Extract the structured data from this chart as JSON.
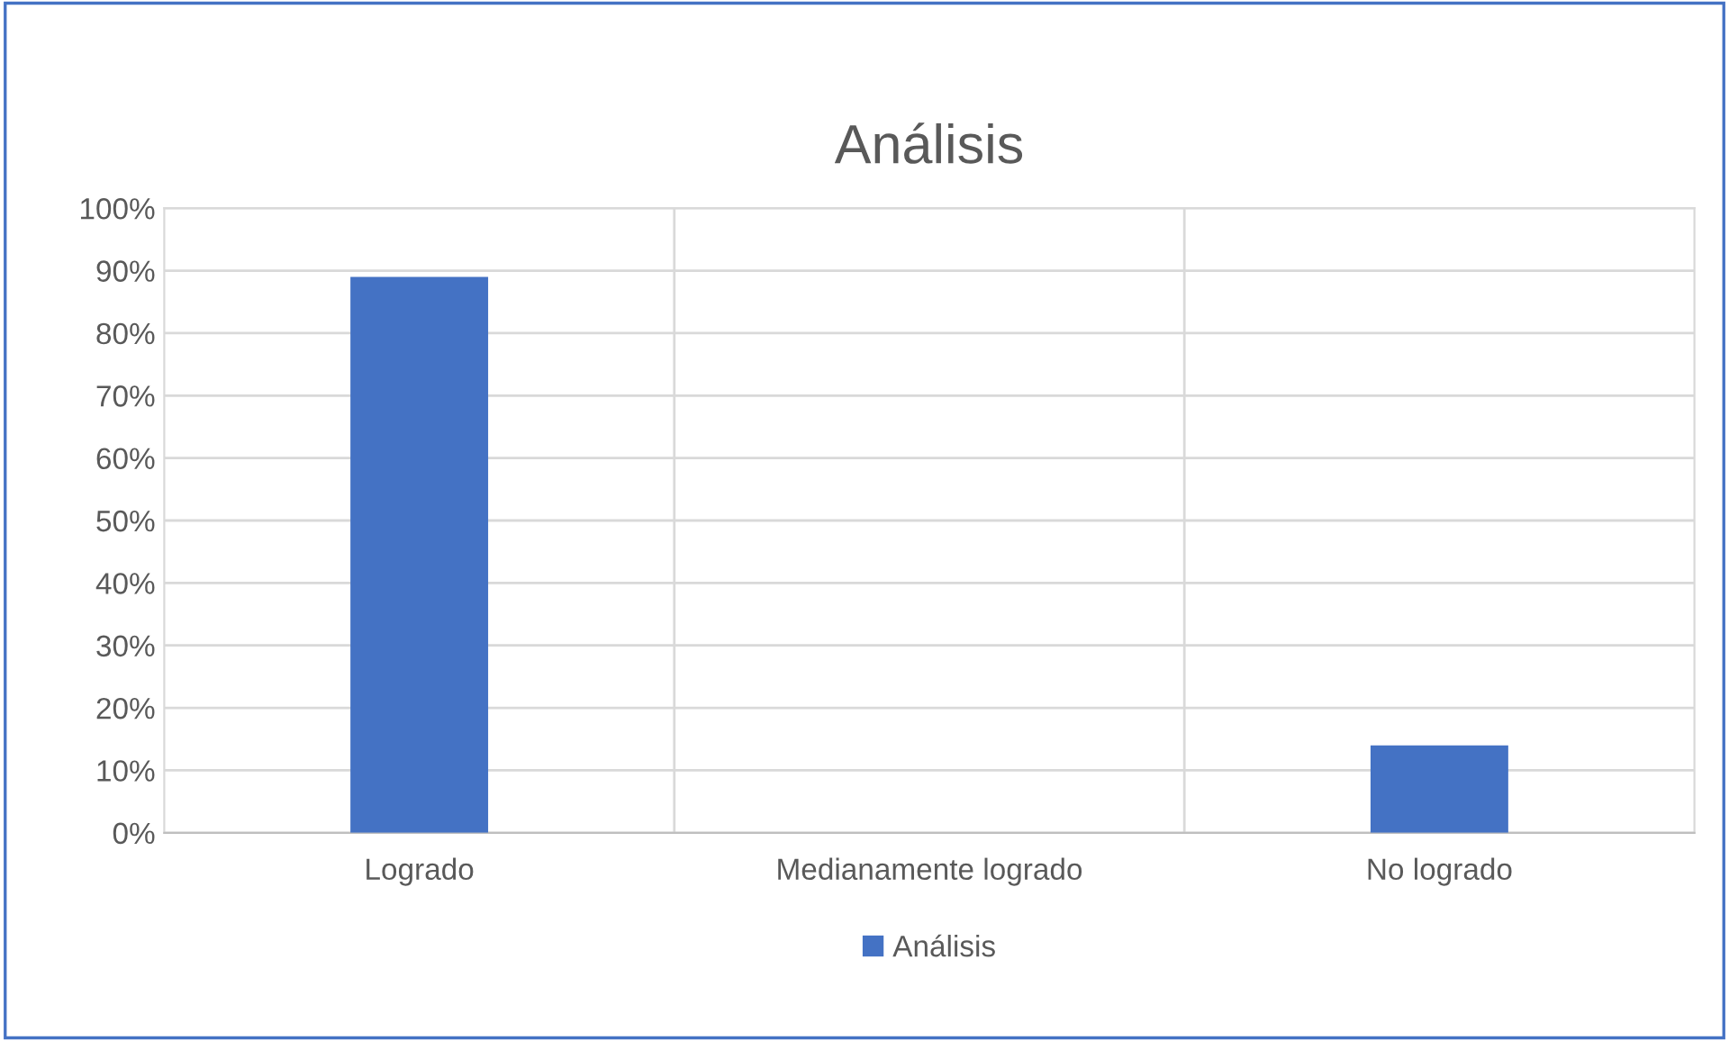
{
  "chart_data": {
    "type": "bar",
    "title": "Análisis",
    "categories": [
      "Logrado",
      "Medianamente logrado",
      "No logrado"
    ],
    "series": [
      {
        "name": "Análisis",
        "color": "#4472c4",
        "values": [
          89,
          0,
          14
        ]
      }
    ],
    "ylim": [
      0,
      100
    ],
    "yticks": [
      {
        "value": 0,
        "label": "0%"
      },
      {
        "value": 10,
        "label": "10%"
      },
      {
        "value": 20,
        "label": "20%"
      },
      {
        "value": 30,
        "label": "30%"
      },
      {
        "value": 40,
        "label": "40%"
      },
      {
        "value": 50,
        "label": "50%"
      },
      {
        "value": 60,
        "label": "60%"
      },
      {
        "value": 70,
        "label": "70%"
      },
      {
        "value": 80,
        "label": "80%"
      },
      {
        "value": 90,
        "label": "90%"
      },
      {
        "value": 100,
        "label": "100%"
      }
    ],
    "grid": true,
    "legend": "bottom"
  }
}
